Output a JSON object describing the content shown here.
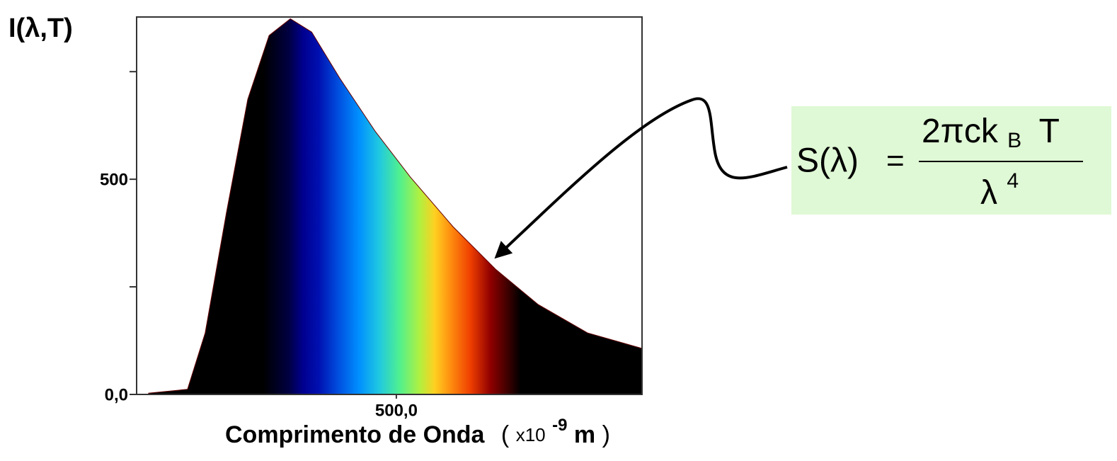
{
  "chart_data": {
    "type": "area",
    "y_label": "I(λ,T)",
    "x_label": {
      "text": "Comprimento de Onda",
      "open": "(",
      "unit": "x10",
      "exponent": "-9",
      "suffix": "m",
      "close": ")"
    },
    "x": [
      23,
      98,
      132,
      173,
      214,
      255,
      296,
      337,
      391,
      459,
      527,
      609,
      691,
      773,
      868,
      973
    ],
    "values": [
      3,
      12,
      143,
      423,
      686,
      834,
      873,
      842,
      735,
      612,
      505,
      390,
      291,
      209,
      143,
      107
    ],
    "xlim": [
      0,
      973
    ],
    "ylim": [
      0,
      877
    ],
    "xticks": [
      {
        "value": 500,
        "label": "500,0"
      }
    ],
    "yticks": [
      {
        "value": 0,
        "label": "0,0"
      },
      500
    ],
    "yminorticks": [
      250,
      750
    ],
    "annotation": {
      "lhs": "S(λ)",
      "equals": "=",
      "numerator": "2πck",
      "subscript": "B",
      "numerator_end": "T",
      "denominator": "λ",
      "exponent": "4"
    }
  }
}
